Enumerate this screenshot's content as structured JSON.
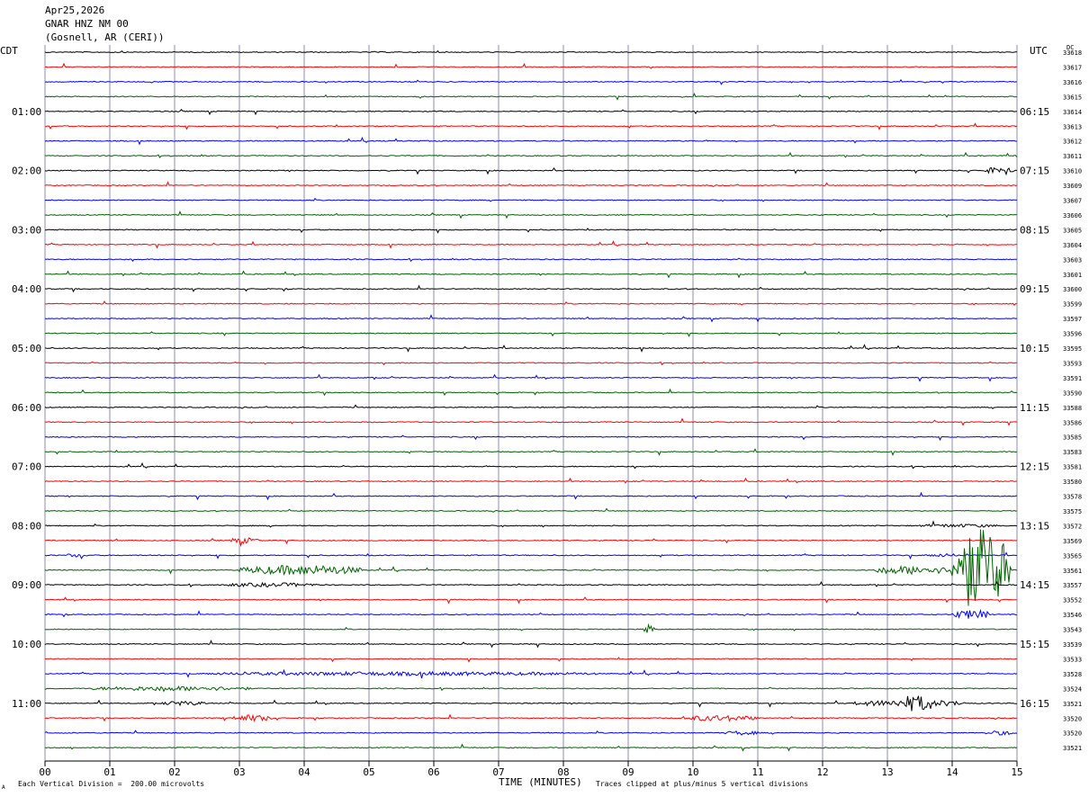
{
  "header": {
    "date": "Apr25,2026",
    "station": "GNAR HNZ NM 00",
    "location": "(Gosnell, AR (CERI))"
  },
  "chart_data": {
    "type": "line",
    "title": "Apr25,2026 GNAR HNZ NM 00 (Gosnell, AR (CERI))",
    "left_axis_title": "CDT",
    "right_axis_title": "UTC",
    "dc_title": "DC",
    "xlabel": "TIME (MINUTES)",
    "x_ticks": [
      "00",
      "01",
      "02",
      "03",
      "04",
      "05",
      "06",
      "07",
      "08",
      "09",
      "10",
      "11",
      "12",
      "13",
      "14",
      "15"
    ],
    "xlim": [
      0,
      15
    ],
    "grid": true,
    "left_hour_labels": [
      "01:00",
      "02:00",
      "03:00",
      "04:00",
      "05:00",
      "06:00",
      "07:00",
      "08:00",
      "09:00",
      "10:00",
      "11:00"
    ],
    "right_hour_labels": [
      "06:15",
      "07:15",
      "08:15",
      "09:15",
      "10:15",
      "11:15",
      "12:15",
      "13:15",
      "14:15",
      "15:15",
      "16:15"
    ],
    "trace_colors": [
      "#000000",
      "#ff0000",
      "#0000ff",
      "#006400"
    ],
    "dc_offsets": [
      33618,
      33617,
      33616,
      33615,
      33614,
      33613,
      33612,
      33611,
      33610,
      33609,
      33607,
      33606,
      33605,
      33604,
      33603,
      33601,
      33600,
      33599,
      33597,
      33596,
      33595,
      33593,
      33591,
      33590,
      33588,
      33586,
      33585,
      33583,
      33581,
      33580,
      33578,
      33575,
      33572,
      33569,
      33565,
      33561,
      33557,
      33552,
      33546,
      33543,
      33539,
      33533,
      33528,
      33524,
      33521,
      33520,
      33520,
      33521
    ],
    "bursts": [
      {
        "trace": 8,
        "start": 14.5,
        "end": 14.95,
        "amp": 0.35
      },
      {
        "trace": 32,
        "start": 13.5,
        "end": 14.7,
        "amp": 0.15
      },
      {
        "trace": 33,
        "start": 2.85,
        "end": 3.3,
        "amp": 0.3
      },
      {
        "trace": 34,
        "start": 0.3,
        "end": 0.65,
        "amp": 0.15
      },
      {
        "trace": 34,
        "start": 13.6,
        "end": 14.1,
        "amp": 0.15
      },
      {
        "trace": 35,
        "start": 3.0,
        "end": 4.9,
        "amp": 0.55
      },
      {
        "trace": 35,
        "start": 12.8,
        "end": 14.0,
        "amp": 0.45
      },
      {
        "trace": 35,
        "start": 14.0,
        "end": 14.9,
        "amp": 5.0
      },
      {
        "trace": 36,
        "start": 2.8,
        "end": 4.2,
        "amp": 0.2
      },
      {
        "trace": 38,
        "start": 14.0,
        "end": 14.6,
        "amp": 0.5
      },
      {
        "trace": 39,
        "start": 9.25,
        "end": 9.4,
        "amp": 0.6
      },
      {
        "trace": 42,
        "start": 2.5,
        "end": 8.5,
        "amp": 0.18
      },
      {
        "trace": 43,
        "start": 0.7,
        "end": 3.2,
        "amp": 0.22
      },
      {
        "trace": 44,
        "start": 1.8,
        "end": 2.5,
        "amp": 0.2
      },
      {
        "trace": 44,
        "start": 12.5,
        "end": 14.2,
        "amp": 0.35
      },
      {
        "trace": 44,
        "start": 13.2,
        "end": 13.7,
        "amp": 0.6
      },
      {
        "trace": 45,
        "start": 2.9,
        "end": 3.5,
        "amp": 0.35
      },
      {
        "trace": 45,
        "start": 9.8,
        "end": 11.0,
        "amp": 0.3
      },
      {
        "trace": 46,
        "start": 10.5,
        "end": 11.0,
        "amp": 0.2
      },
      {
        "trace": 46,
        "start": 14.5,
        "end": 15.0,
        "amp": 0.2
      }
    ]
  },
  "footer": {
    "scale_note": "Each Vertical Division =  200.00 microvolts",
    "clip_note": "Traces clipped at plus/minus 5 vertical divisions",
    "corner_mark": "A"
  }
}
